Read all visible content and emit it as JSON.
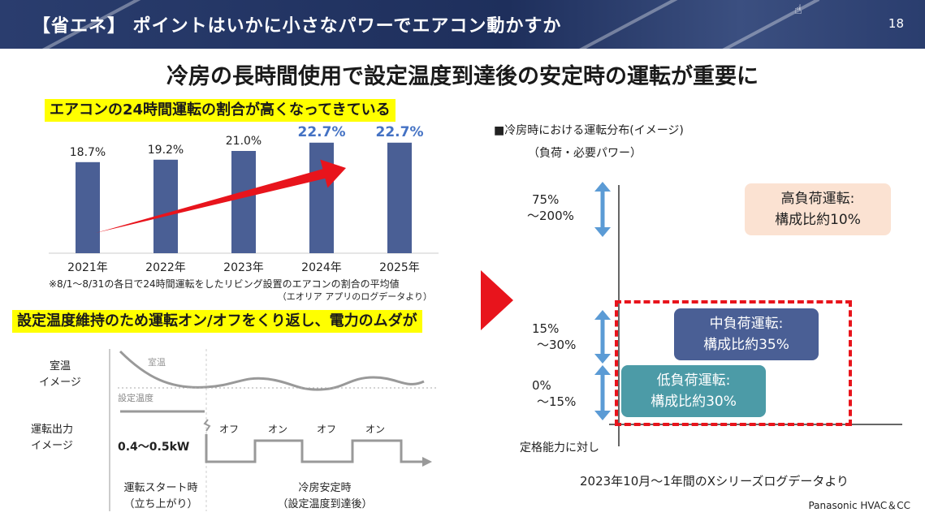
{
  "header": {
    "title": "【省エネ】 ポイントはいかに小さなパワーでエアコン動かすか",
    "page_number": "18"
  },
  "main_title": "冷房の長時間使用で設定温度到達後の安定時の運転が重要に",
  "highlight_24h": "エアコンの24時間運転の割合が高くなってきている",
  "highlight_onoff": "設定温度維持のため運転オン/オフをくり返し、電力のムダが",
  "chart_data": {
    "type": "bar",
    "categories": [
      "2021年",
      "2022年",
      "2023年",
      "2024年",
      "2025年"
    ],
    "values": [
      18.7,
      19.2,
      21.0,
      22.7,
      22.7
    ],
    "value_labels": [
      "18.7%",
      "19.2%",
      "21.0%",
      "22.7%",
      "22.7%"
    ],
    "highlighted_labels": [
      false,
      false,
      false,
      true,
      true
    ],
    "title": "",
    "xlabel": "",
    "ylabel": "",
    "ylim": [
      0,
      25
    ],
    "grid": false,
    "colors": {
      "bar": "#4a5f95",
      "label_normal": "#222222",
      "label_highlight": "#4472c4",
      "trend_arrow": "#e8141c"
    }
  },
  "bar_note": {
    "line1": "※8/1～8/31の各日で24時間運転をしたリビング設置のエアコンの割合の平均値",
    "line2": "（エオリア アプリのログデータより）"
  },
  "left_diagram": {
    "room_temp_label_1": "室温",
    "room_temp_label_2": "イメージ",
    "room_temp_curve_label": "室温",
    "set_temp_label": "設定温度",
    "output_label_1": "運転出力",
    "output_label_2": "イメージ",
    "output_value": "0.4～0.5kW",
    "off_label": "オフ",
    "on_label": "オン",
    "start_label_1": "運転スタート時",
    "start_label_2": "（立ち上がり）",
    "stable_label_1": "冷房安定時",
    "stable_label_2": "（設定温度到達後）"
  },
  "right_panel": {
    "title": "■冷房時における運転分布(イメージ)",
    "subtitle": "（負荷・必要パワー）",
    "ranges": [
      {
        "line1": "75%",
        "line2": "～200%"
      },
      {
        "line1": "15%",
        "line2": "～30%"
      },
      {
        "line1": "0%",
        "line2": "～15%"
      }
    ],
    "axis_label": "定格能力に対し",
    "boxes": {
      "high": {
        "line1": "高負荷運転:",
        "line2": "構成比約10%"
      },
      "mid": {
        "line1": "中負荷運転:",
        "line2": "構成比約35%"
      },
      "low": {
        "line1": "低負荷運転:",
        "line2": "構成比約30%"
      }
    },
    "source": "2023年10月～1年間のXシリーズログデータより"
  },
  "footer": "Panasonic HVAC＆CC"
}
